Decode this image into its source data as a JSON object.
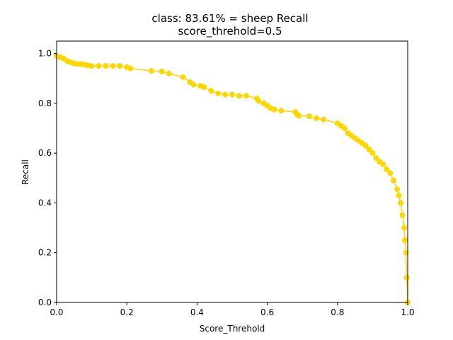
{
  "chart_data": {
    "type": "line",
    "title": "class: 83.61% = sheep Recall",
    "subtitle": "score_threhold=0.5",
    "xlabel": "Score_Threhold",
    "ylabel": "Recall",
    "xlim": [
      0.0,
      1.0
    ],
    "ylim": [
      0.0,
      1.05
    ],
    "xticks": [
      "0.0",
      "0.2",
      "0.4",
      "0.6",
      "0.8",
      "1.0"
    ],
    "yticks": [
      "0.0",
      "0.2",
      "0.4",
      "0.6",
      "0.8",
      "1.0"
    ],
    "grid": false,
    "series": [
      {
        "color": "#FFD700",
        "marker": "circle",
        "x": [
          0.0,
          0.01,
          0.02,
          0.03,
          0.04,
          0.05,
          0.06,
          0.07,
          0.08,
          0.09,
          0.1,
          0.12,
          0.14,
          0.16,
          0.18,
          0.2,
          0.21,
          0.27,
          0.3,
          0.32,
          0.36,
          0.38,
          0.39,
          0.41,
          0.42,
          0.44,
          0.46,
          0.48,
          0.5,
          0.52,
          0.54,
          0.57,
          0.575,
          0.59,
          0.6,
          0.61,
          0.62,
          0.64,
          0.68,
          0.685,
          0.69,
          0.72,
          0.74,
          0.76,
          0.8,
          0.81,
          0.82,
          0.83,
          0.84,
          0.85,
          0.86,
          0.87,
          0.88,
          0.89,
          0.9,
          0.91,
          0.92,
          0.93,
          0.94,
          0.95,
          0.96,
          0.97,
          0.975,
          0.98,
          0.985,
          0.99,
          0.992,
          0.995,
          0.997,
          1.0
        ],
        "y": [
          0.99,
          0.985,
          0.98,
          0.97,
          0.965,
          0.96,
          0.958,
          0.958,
          0.955,
          0.952,
          0.95,
          0.95,
          0.95,
          0.95,
          0.95,
          0.945,
          0.94,
          0.93,
          0.928,
          0.92,
          0.905,
          0.885,
          0.875,
          0.87,
          0.865,
          0.85,
          0.84,
          0.835,
          0.835,
          0.83,
          0.83,
          0.82,
          0.81,
          0.8,
          0.79,
          0.78,
          0.775,
          0.77,
          0.765,
          0.755,
          0.75,
          0.748,
          0.74,
          0.735,
          0.72,
          0.71,
          0.7,
          0.68,
          0.67,
          0.66,
          0.65,
          0.64,
          0.63,
          0.615,
          0.6,
          0.58,
          0.565,
          0.555,
          0.535,
          0.52,
          0.49,
          0.455,
          0.43,
          0.4,
          0.35,
          0.3,
          0.25,
          0.2,
          0.1,
          0.0
        ]
      }
    ]
  }
}
